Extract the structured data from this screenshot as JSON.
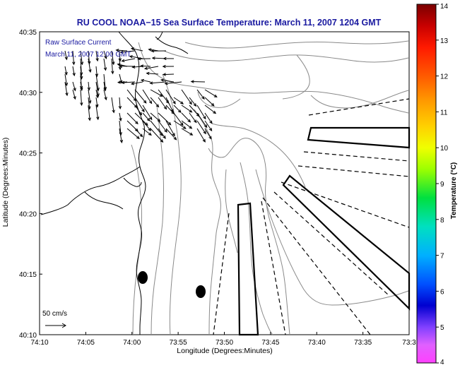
{
  "title": "RU COOL  NOAA−15  Sea Surface Temperature:  March 11, 2007 1204 GMT",
  "annotation": {
    "line1": "Raw Surface Current",
    "line2": "March 11, 2007 12:00 GMT"
  },
  "scale_label": "50 cm/s",
  "axes": {
    "xlabel": "Longitude (Degrees:Minutes)",
    "ylabel": "Latitude (Degrees:Minutes)",
    "x_ticks": [
      "74:10",
      "74:05",
      "74:00",
      "73:55",
      "73:50",
      "73:45",
      "73:40",
      "73:35",
      "73:3"
    ],
    "y_ticks": [
      "40:35",
      "40:30",
      "40:25",
      "40:20",
      "40:15",
      "40:10"
    ]
  },
  "colorbar": {
    "label": "Temperature (°C)",
    "ticks": [
      "14",
      "13",
      "12",
      "11",
      "10",
      "9",
      "8",
      "7",
      "6",
      "5",
      "4"
    ]
  },
  "colors": {
    "title": "#1a1aa0",
    "annotation": "#1a1aa0",
    "coast": "#000000",
    "bathymetry": "#8a8a8a",
    "vectors": "#000000"
  }
}
